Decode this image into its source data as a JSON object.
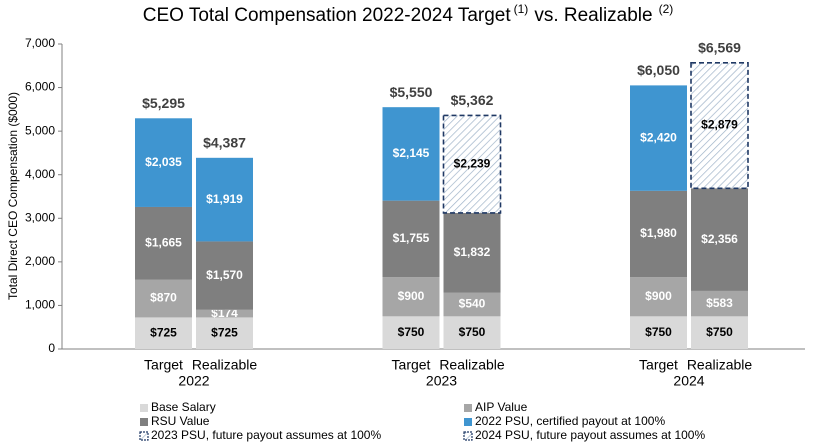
{
  "chart_data": {
    "type": "stacked-bar",
    "title": "CEO Total Compensation  2022-2024 Target",
    "title_note_1": "(1)",
    "title_mid": "vs. Realizable",
    "title_note_2": "(2)",
    "y_label": "Total Direct CEO  Compensation ($000)",
    "groups": [
      "2022",
      "2023",
      "2024"
    ],
    "categories": [
      "Target",
      "Realizable",
      "Target",
      "Realizable",
      "Target",
      "Realizable"
    ],
    "ylim": [
      0,
      7000
    ],
    "yticks": [
      0,
      {
        "value": 1000,
        "label": "1,000"
      },
      {
        "value": 2000,
        "label": "2,000"
      },
      {
        "value": 3000,
        "label": "3,000"
      },
      {
        "value": 4000,
        "label": "4,000"
      },
      {
        "value": 5000,
        "label": "5,000"
      },
      {
        "value": 6000,
        "label": "6,000"
      },
      {
        "value": 7000,
        "label": "7,000"
      }
    ],
    "grid": false,
    "series": [
      {
        "name": "Base Salary",
        "color": "#d9d9d9",
        "pattern": "solid",
        "label_color": "#000000",
        "values": [
          725,
          725,
          750,
          750,
          750,
          750
        ],
        "value_labels": [
          "$725",
          "$725",
          "$750",
          "$750",
          "$750",
          "$750"
        ]
      },
      {
        "name": "AIP Value",
        "color": "#a6a6a6",
        "pattern": "solid",
        "label_color": "#ffffff",
        "values": [
          870,
          174,
          900,
          540,
          900,
          583
        ],
        "value_labels": [
          "$870",
          "$174",
          "$900",
          "$540",
          "$900",
          "$583"
        ]
      },
      {
        "name": "RSU Value",
        "color": "#7f7f7f",
        "pattern": "solid",
        "label_color": "#ffffff",
        "values": [
          1665,
          1570,
          1755,
          1832,
          1980,
          2356
        ],
        "value_labels": [
          "$1,665",
          "$1,570",
          "$1,755",
          "$1,832",
          "$1,980",
          "$2,356"
        ]
      },
      {
        "name": "2022 PSU, certified payout at 100%",
        "color": "#3f95d0",
        "pattern": "solid",
        "label_color": "#ffffff",
        "values": [
          2035,
          1919,
          2145,
          null,
          2420,
          null
        ],
        "value_labels": [
          "$2,035",
          "$1,919",
          "$2,145",
          null,
          "$2,420",
          null
        ]
      },
      {
        "name": "2023 PSU, future payout assumes at 100%",
        "color": "#1f3864",
        "pattern": "hatch",
        "label_color": "#000000",
        "values": [
          null,
          null,
          null,
          2239,
          null,
          null
        ],
        "value_labels": [
          null,
          null,
          null,
          "$2,239",
          null,
          null
        ]
      },
      {
        "name": "2024 PSU, future payout assumes at 100%",
        "color": "#1f3864",
        "pattern": "hatch",
        "label_color": "#000000",
        "values": [
          null,
          null,
          null,
          null,
          null,
          2879
        ],
        "value_labels": [
          null,
          null,
          null,
          null,
          null,
          "$2,879"
        ]
      }
    ],
    "totals": {
      "values": [
        5295,
        4387,
        5550,
        5362,
        6050,
        6569
      ],
      "value_labels": [
        "$5,295",
        "$4,387",
        "$5,550",
        "$5,362",
        "$6,050",
        "$6,569"
      ]
    },
    "legend": "bottom"
  }
}
